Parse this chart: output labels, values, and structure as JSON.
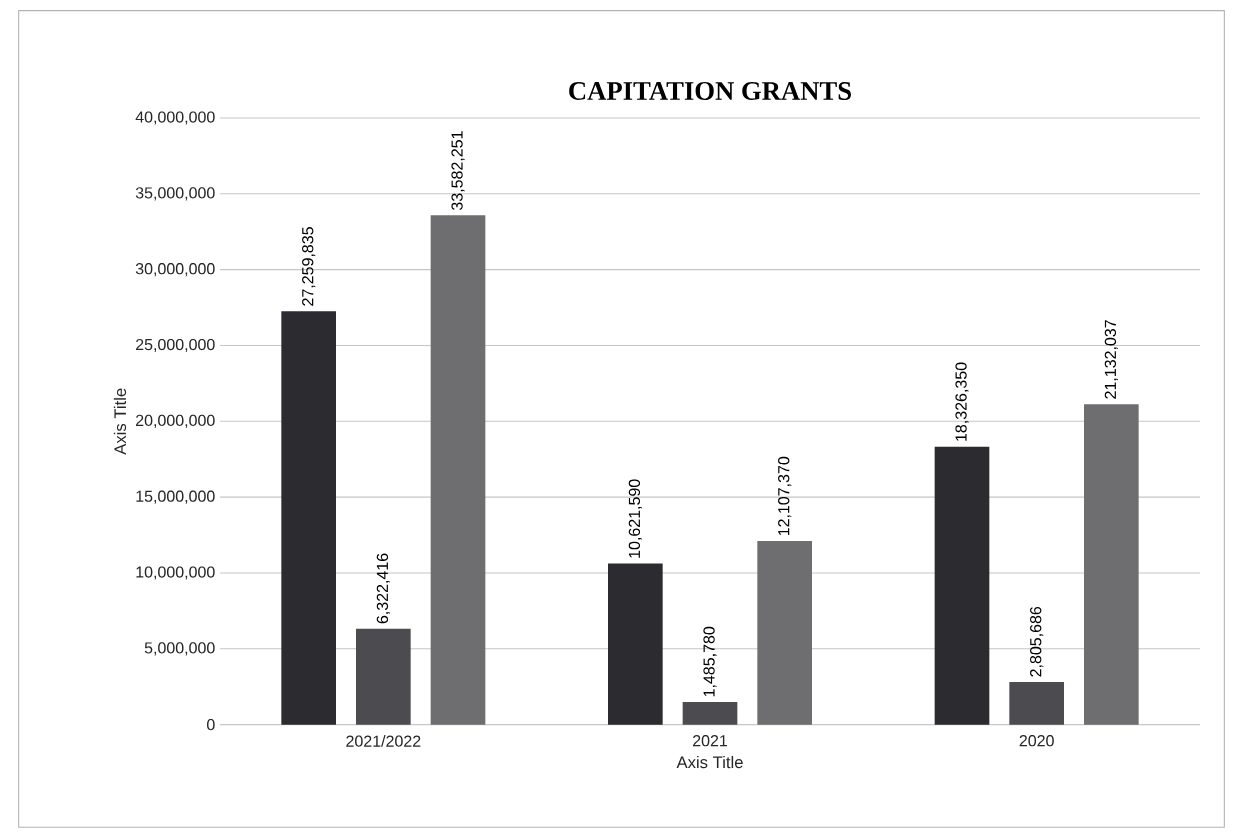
{
  "chart_data": {
    "type": "bar",
    "title": "CAPITATION GRANTS",
    "xlabel": "Axis Title",
    "ylabel": "Axis Title",
    "categories": [
      "2021/2022",
      "2021",
      "2020"
    ],
    "series": [
      {
        "color": "#2b2b30",
        "values": [
          27259835,
          10621590,
          18326350
        ],
        "value_labels": [
          "27,259,835",
          "10,621,590",
          "18,326,350"
        ]
      },
      {
        "color": "#4c4c50",
        "values": [
          6322416,
          1485780,
          2805686
        ],
        "value_labels": [
          "6,322,416",
          "1,485,780",
          "2,805,686"
        ]
      },
      {
        "color": "#6e6e70",
        "values": [
          33582251,
          12107370,
          21132037
        ],
        "value_labels": [
          "33,582,251",
          "12,107,370",
          "21,132,037"
        ]
      }
    ],
    "ylim": [
      0,
      40000000
    ],
    "yticks": [
      {
        "value": 0,
        "label": "0"
      },
      {
        "value": 5000000,
        "label": "5,000,000"
      },
      {
        "value": 10000000,
        "label": "10,000,000"
      },
      {
        "value": 15000000,
        "label": "15,000,000"
      },
      {
        "value": 20000000,
        "label": "20,000,000"
      },
      {
        "value": 25000000,
        "label": "25,000,000"
      },
      {
        "value": 30000000,
        "label": "30,000,000"
      },
      {
        "value": 35000000,
        "label": "35,000,000"
      },
      {
        "value": 40000000,
        "label": "40,000,000"
      }
    ],
    "grid": "y"
  }
}
